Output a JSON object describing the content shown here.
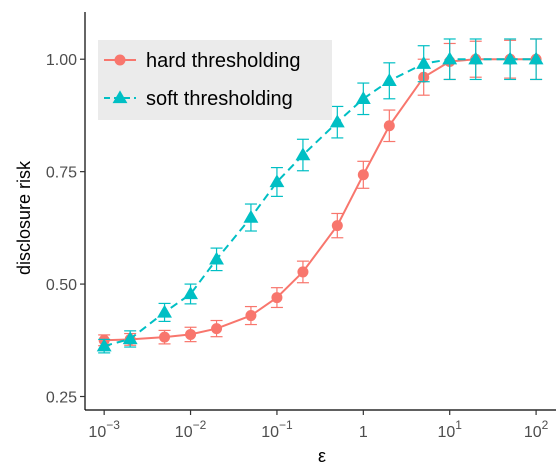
{
  "chart_data": {
    "type": "line",
    "xlabel": "ε",
    "ylabel": "disclosure risk",
    "x_scale": "log10",
    "xlim": [
      0.0006,
      170
    ],
    "ylim": [
      0.22,
      1.105
    ],
    "x_ticks": [
      {
        "value": 0.001,
        "base": "10",
        "exp": "−3"
      },
      {
        "value": 0.01,
        "base": "10",
        "exp": "−2"
      },
      {
        "value": 0.1,
        "base": "10",
        "exp": "−1"
      },
      {
        "value": 1,
        "base": "1",
        "exp": ""
      },
      {
        "value": 10,
        "base": "10",
        "exp": "1"
      },
      {
        "value": 100,
        "base": "10",
        "exp": "2"
      }
    ],
    "y_ticks": [
      {
        "value": 0.25,
        "label": "0.25"
      },
      {
        "value": 0.5,
        "label": "0.50"
      },
      {
        "value": 0.75,
        "label": "0.75"
      },
      {
        "value": 1.0,
        "label": "1.00"
      }
    ],
    "legend": {
      "placement": "top-left",
      "background": "#ebebeb"
    },
    "grid": false,
    "x": [
      0.001,
      0.002,
      0.005,
      0.01,
      0.02,
      0.05,
      0.1,
      0.2,
      0.5,
      1,
      2,
      5,
      10,
      20,
      50,
      100
    ],
    "series": [
      {
        "name": "hard thresholding",
        "color": "#f8766d",
        "marker": "circle",
        "linestyle": "solid",
        "y": [
          0.375,
          0.377,
          0.382,
          0.388,
          0.401,
          0.43,
          0.47,
          0.527,
          0.63,
          0.743,
          0.852,
          0.96,
          0.995,
          1.0,
          1.0,
          1.0
        ],
        "err": [
          0.012,
          0.013,
          0.015,
          0.016,
          0.018,
          0.02,
          0.022,
          0.024,
          0.027,
          0.03,
          0.035,
          0.04,
          0.04,
          0.04,
          0.042,
          0.045
        ]
      },
      {
        "name": "soft thresholding",
        "color": "#00bfc4",
        "marker": "triangle",
        "linestyle": "dashed",
        "y": [
          0.362,
          0.378,
          0.437,
          0.478,
          0.555,
          0.648,
          0.727,
          0.787,
          0.86,
          0.912,
          0.952,
          0.99,
          1.0,
          1.0,
          1.0,
          1.0
        ],
        "err": [
          0.015,
          0.018,
          0.02,
          0.022,
          0.025,
          0.03,
          0.032,
          0.035,
          0.035,
          0.035,
          0.04,
          0.04,
          0.045,
          0.045,
          0.045,
          0.045
        ]
      }
    ]
  }
}
